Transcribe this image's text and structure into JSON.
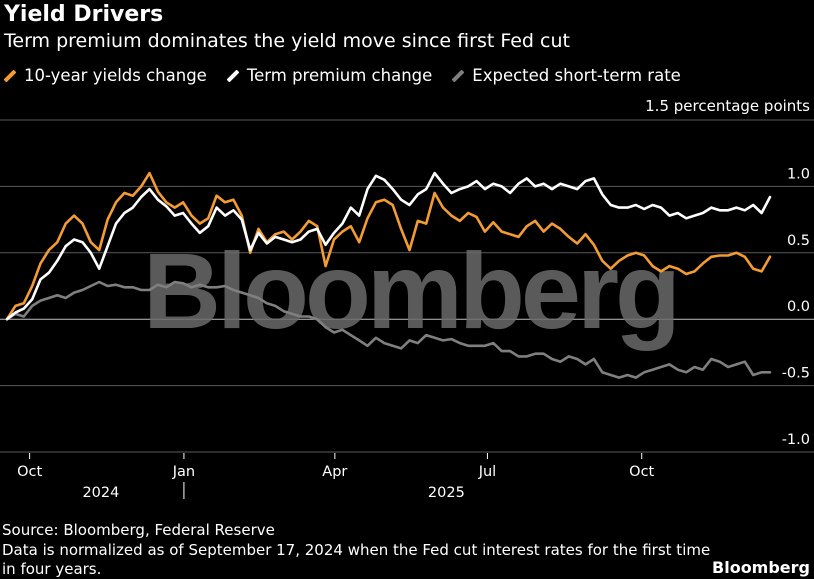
{
  "header": {
    "title": "Yield Drivers",
    "subtitle": "Term premium dominates the yield move since first Fed cut"
  },
  "colors": {
    "ten_year": "#f39c33",
    "term_premium": "#ffffff",
    "short_rate": "#7f7f7f",
    "grid": "#5a5a5a",
    "zero_line": "#bfbfbf",
    "watermark": "#6a6a6a"
  },
  "chart_data": {
    "type": "line",
    "title": "Yield Drivers",
    "ylabel": "1.5 percentage points",
    "ylim": [
      -1.0,
      1.5
    ],
    "yticks": [
      1.0,
      0.5,
      0.0,
      -0.5,
      -1.0
    ],
    "ytick_labels": [
      "1.0",
      "0.5",
      "0.0",
      "-0.5",
      "-1.0"
    ],
    "xticks": [
      "Oct",
      "Jan",
      "Apr",
      "Jul",
      "Oct"
    ],
    "xtick_positions": [
      13.5,
      105.5,
      195.5,
      286.5,
      378.5
    ],
    "year_labels": [
      "2024",
      "2025"
    ],
    "year_positions": [
      56,
      262
    ],
    "year_divider": 105.5,
    "x_range": [
      0,
      455
    ],
    "watermark": "Bloomberg",
    "series": [
      {
        "name": "10-year yields change",
        "x": [
          0,
          5,
          10,
          15,
          20,
          25,
          30,
          35,
          40,
          45,
          50,
          55,
          60,
          65,
          70,
          75,
          80,
          85,
          90,
          95,
          100,
          105,
          110,
          115,
          120,
          125,
          130,
          135,
          140,
          145,
          150,
          155,
          160,
          165,
          170,
          175,
          180,
          185,
          190,
          195,
          200,
          205,
          210,
          215,
          220,
          225,
          230,
          235,
          240,
          245,
          250,
          255,
          260,
          265,
          270,
          275,
          280,
          285,
          290,
          295,
          300,
          305,
          310,
          315,
          320,
          325,
          330,
          335,
          340,
          345,
          350,
          355,
          360,
          365,
          370,
          375,
          380,
          385,
          390,
          395,
          400,
          405,
          410,
          415,
          420,
          425,
          430,
          435,
          440,
          445,
          450,
          455
        ],
        "values": [
          0.0,
          0.1,
          0.12,
          0.25,
          0.42,
          0.52,
          0.58,
          0.72,
          0.78,
          0.72,
          0.58,
          0.52,
          0.75,
          0.88,
          0.95,
          0.93,
          1.0,
          1.1,
          0.96,
          0.88,
          0.84,
          0.88,
          0.78,
          0.72,
          0.76,
          0.93,
          0.88,
          0.9,
          0.78,
          0.5,
          0.68,
          0.58,
          0.64,
          0.66,
          0.6,
          0.66,
          0.74,
          0.7,
          0.4,
          0.6,
          0.66,
          0.7,
          0.58,
          0.76,
          0.88,
          0.9,
          0.86,
          0.68,
          0.52,
          0.74,
          0.72,
          0.95,
          0.84,
          0.78,
          0.74,
          0.8,
          0.77,
          0.66,
          0.73,
          0.66,
          0.64,
          0.62,
          0.7,
          0.74,
          0.66,
          0.72,
          0.68,
          0.62,
          0.57,
          0.64,
          0.56,
          0.44,
          0.38,
          0.44,
          0.48,
          0.5,
          0.48,
          0.4,
          0.36,
          0.4,
          0.38,
          0.34,
          0.36,
          0.42,
          0.47,
          0.48,
          0.48,
          0.5,
          0.47,
          0.38,
          0.36,
          0.47
        ]
      },
      {
        "name": "Term premium change",
        "x": [
          0,
          5,
          10,
          15,
          20,
          25,
          30,
          35,
          40,
          45,
          50,
          55,
          60,
          65,
          70,
          75,
          80,
          85,
          90,
          95,
          100,
          105,
          110,
          115,
          120,
          125,
          130,
          135,
          140,
          145,
          150,
          155,
          160,
          165,
          170,
          175,
          180,
          185,
          190,
          195,
          200,
          205,
          210,
          215,
          220,
          225,
          230,
          235,
          240,
          245,
          250,
          255,
          260,
          265,
          270,
          275,
          280,
          285,
          290,
          295,
          300,
          305,
          310,
          315,
          320,
          325,
          330,
          335,
          340,
          345,
          350,
          355,
          360,
          365,
          370,
          375,
          380,
          385,
          390,
          395,
          400,
          405,
          410,
          415,
          420,
          425,
          430,
          435,
          440,
          445,
          450,
          455
        ],
        "values": [
          0.0,
          0.05,
          0.08,
          0.15,
          0.3,
          0.35,
          0.44,
          0.55,
          0.6,
          0.58,
          0.5,
          0.38,
          0.55,
          0.72,
          0.8,
          0.84,
          0.92,
          0.98,
          0.9,
          0.85,
          0.78,
          0.8,
          0.72,
          0.65,
          0.7,
          0.84,
          0.78,
          0.82,
          0.75,
          0.52,
          0.65,
          0.57,
          0.62,
          0.6,
          0.58,
          0.6,
          0.66,
          0.68,
          0.56,
          0.65,
          0.72,
          0.84,
          0.78,
          0.98,
          1.08,
          1.05,
          0.98,
          0.9,
          0.86,
          0.94,
          0.98,
          1.1,
          1.02,
          0.95,
          0.98,
          1.0,
          1.04,
          0.98,
          1.02,
          1.0,
          0.95,
          1.02,
          1.06,
          1.0,
          1.02,
          0.98,
          1.02,
          1.0,
          0.98,
          1.04,
          1.06,
          0.94,
          0.86,
          0.84,
          0.84,
          0.86,
          0.83,
          0.86,
          0.84,
          0.78,
          0.8,
          0.76,
          0.78,
          0.8,
          0.84,
          0.82,
          0.82,
          0.84,
          0.82,
          0.86,
          0.8,
          0.92
        ]
      },
      {
        "name": "Expected short-term rate",
        "x": [
          0,
          5,
          10,
          15,
          20,
          25,
          30,
          35,
          40,
          45,
          50,
          55,
          60,
          65,
          70,
          75,
          80,
          85,
          90,
          95,
          100,
          105,
          110,
          115,
          120,
          125,
          130,
          135,
          140,
          145,
          150,
          155,
          160,
          165,
          170,
          175,
          180,
          185,
          190,
          195,
          200,
          205,
          210,
          215,
          220,
          225,
          230,
          235,
          240,
          245,
          250,
          255,
          260,
          265,
          270,
          275,
          280,
          285,
          290,
          295,
          300,
          305,
          310,
          315,
          320,
          325,
          330,
          335,
          340,
          345,
          350,
          355,
          360,
          365,
          370,
          375,
          380,
          385,
          390,
          395,
          400,
          405,
          410,
          415,
          420,
          425,
          430,
          435,
          440,
          445,
          450,
          455
        ],
        "values": [
          0.0,
          0.04,
          0.02,
          0.1,
          0.14,
          0.16,
          0.18,
          0.16,
          0.2,
          0.22,
          0.25,
          0.28,
          0.25,
          0.26,
          0.24,
          0.24,
          0.22,
          0.22,
          0.26,
          0.24,
          0.28,
          0.27,
          0.24,
          0.26,
          0.24,
          0.24,
          0.25,
          0.22,
          0.2,
          0.18,
          0.16,
          0.12,
          0.1,
          0.06,
          0.04,
          0.02,
          0.02,
          0.0,
          -0.06,
          -0.1,
          -0.08,
          -0.12,
          -0.16,
          -0.2,
          -0.14,
          -0.18,
          -0.2,
          -0.22,
          -0.16,
          -0.18,
          -0.12,
          -0.14,
          -0.16,
          -0.15,
          -0.18,
          -0.2,
          -0.2,
          -0.2,
          -0.18,
          -0.24,
          -0.24,
          -0.28,
          -0.28,
          -0.26,
          -0.26,
          -0.3,
          -0.32,
          -0.28,
          -0.3,
          -0.34,
          -0.3,
          -0.4,
          -0.42,
          -0.44,
          -0.42,
          -0.44,
          -0.4,
          -0.38,
          -0.36,
          -0.34,
          -0.38,
          -0.4,
          -0.36,
          -0.38,
          -0.3,
          -0.32,
          -0.36,
          -0.34,
          -0.32,
          -0.42,
          -0.4,
          -0.4
        ]
      }
    ]
  },
  "footer": {
    "source": "Source: Bloomberg, Federal Reserve",
    "note_line1": "Data is normalized as of September 17, 2024 when the Fed cut interest rates for the first time",
    "note_line2": "in four years.",
    "brand": "Bloomberg"
  }
}
